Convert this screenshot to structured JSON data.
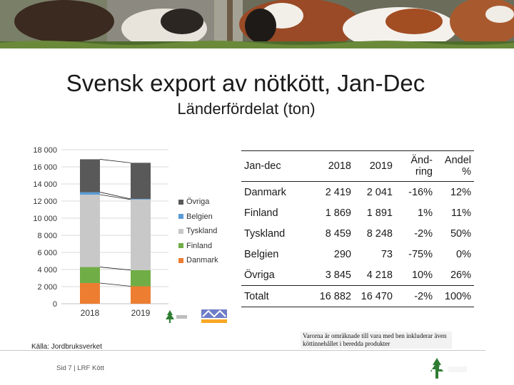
{
  "title": "Svensk export av nötkött, Jan-Dec",
  "subtitle": "Länderfördelat (ton)",
  "colors": {
    "Danmark": "#ed7d31",
    "Finland": "#70ad47",
    "Tyskland": "#c8c8c8",
    "Belgien": "#5b9bd5",
    "Övriga": "#595959"
  },
  "chart_data": {
    "type": "bar",
    "stacked": true,
    "categories": [
      "2018",
      "2019"
    ],
    "series": [
      {
        "name": "Danmark",
        "values": [
          2419,
          2041
        ]
      },
      {
        "name": "Finland",
        "values": [
          1869,
          1891
        ]
      },
      {
        "name": "Tyskland",
        "values": [
          8459,
          8248
        ]
      },
      {
        "name": "Belgien",
        "values": [
          290,
          73
        ]
      },
      {
        "name": "Övriga",
        "values": [
          3845,
          4218
        ]
      }
    ],
    "y_ticks": [
      "0",
      "2 000",
      "4 000",
      "6 000",
      "8 000",
      "10 000",
      "12 000",
      "14 000",
      "16 000",
      "18 000"
    ],
    "ylim": [
      0,
      18000
    ],
    "grid": true,
    "legend_position": "right",
    "legend_order": [
      "Övriga",
      "Belgien",
      "Tyskland",
      "Finland",
      "Danmark"
    ]
  },
  "table": {
    "headers": [
      "Jan-dec",
      "2018",
      "2019",
      "Änd-\nring",
      "Andel\n%"
    ],
    "rows": [
      [
        "Danmark",
        "2 419",
        "2 041",
        "-16%",
        "12%"
      ],
      [
        "Finland",
        "1 869",
        "1 891",
        "1%",
        "11%"
      ],
      [
        "Tyskland",
        "8 459",
        "8 248",
        "-2%",
        "50%"
      ],
      [
        "Belgien",
        "290",
        "73",
        "-75%",
        "0%"
      ],
      [
        "Övriga",
        "3 845",
        "4 218",
        "10%",
        "26%"
      ],
      [
        "Totalt",
        "16 882",
        "16 470",
        "-2%",
        "100%"
      ]
    ]
  },
  "source": "Källa: Jordbruksverket",
  "note": "Varorna är omräknade till vara med ben inkluderar även köttinnehållet i beredda produkter",
  "footer": "Sid 7 | LRF Kött"
}
